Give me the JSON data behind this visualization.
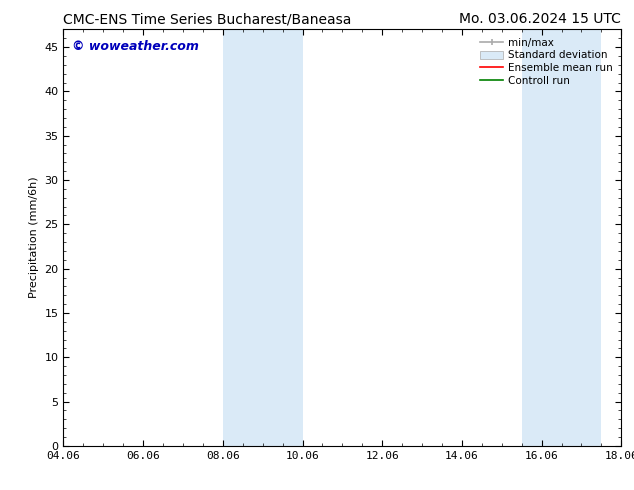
{
  "title_left": "CMC-ENS Time Series Bucharest/Baneasa",
  "title_right": "Mo. 03.06.2024 15 UTC",
  "ylabel": "Precipitation (mm/6h)",
  "watermark": "© woweather.com",
  "x_start": 4.06,
  "x_end": 18.06,
  "y_min": 0,
  "y_max": 47,
  "y_ticks": [
    0,
    5,
    10,
    15,
    20,
    25,
    30,
    35,
    40,
    45
  ],
  "x_ticks": [
    4.06,
    6.06,
    8.06,
    10.06,
    12.06,
    14.06,
    16.06,
    18.06
  ],
  "x_tick_labels": [
    "04.06",
    "06.06",
    "08.06",
    "10.06",
    "12.06",
    "14.06",
    "16.06",
    "18.06"
  ],
  "shaded_regions": [
    {
      "x_start": 8.06,
      "x_end": 10.06,
      "color": "#daeaf7"
    },
    {
      "x_start": 15.56,
      "x_end": 17.56,
      "color": "#daeaf7"
    }
  ],
  "background_color": "#ffffff",
  "plot_background": "#ffffff",
  "title_fontsize": 10,
  "tick_fontsize": 8,
  "watermark_color": "#0000bb",
  "watermark_fontsize": 9,
  "legend_fontsize": 7.5
}
